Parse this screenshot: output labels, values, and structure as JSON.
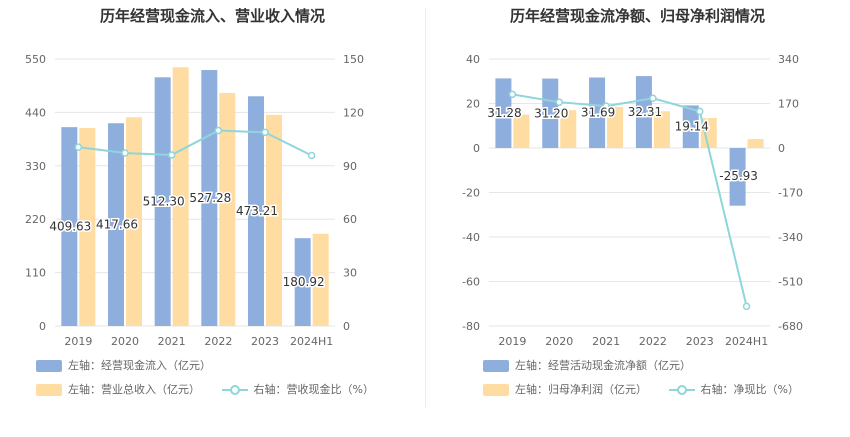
{
  "chart_data": [
    {
      "type": "bar",
      "title": "历年经营现金流入、营业收入情况",
      "categories": [
        "2019",
        "2020",
        "2021",
        "2022",
        "2023",
        "2024H1"
      ],
      "left_axis": {
        "ylim": [
          0,
          550
        ],
        "ticks": [
          "0",
          "110",
          "220",
          "330",
          "440",
          "550"
        ]
      },
      "right_axis": {
        "ylim": [
          0,
          150
        ],
        "ticks": [
          "0",
          "30",
          "60",
          "90",
          "120",
          "150"
        ]
      },
      "series": [
        {
          "name": "左轴：经营现金流入（亿元）",
          "axis": "left",
          "kind": "bar",
          "color": "#8eaedd",
          "values": [
            409.63,
            417.66,
            512.3,
            527.28,
            473.21,
            180.92
          ],
          "labels": [
            "409.63",
            "417.66",
            "512.30",
            "527.28",
            "473.21",
            "180.92"
          ]
        },
        {
          "name": "左轴：营业总收入（亿元）",
          "axis": "left",
          "kind": "bar",
          "color": "#ffdca1",
          "values": [
            408,
            430,
            533,
            480,
            435,
            190
          ]
        },
        {
          "name": "右轴：营收现金比（%）",
          "axis": "right",
          "kind": "line",
          "color": "#8ed6da",
          "values": [
            100.5,
            97.2,
            96.1,
            109.8,
            108.8,
            95.8
          ]
        }
      ],
      "grid": true,
      "legend_position": "bottom"
    },
    {
      "type": "bar",
      "title": "历年经营现金流净额、归母净利润情况",
      "categories": [
        "2019",
        "2020",
        "2021",
        "2022",
        "2023",
        "2024H1"
      ],
      "left_axis": {
        "ylim": [
          -80,
          40
        ],
        "ticks": [
          "-80",
          "-60",
          "-40",
          "-20",
          "0",
          "20",
          "40"
        ]
      },
      "right_axis": {
        "ylim": [
          -680,
          340
        ],
        "ticks": [
          "-680",
          "-510",
          "-340",
          "-170",
          "0",
          "170",
          "340"
        ]
      },
      "series": [
        {
          "name": "左轴：经营活动现金流净额（亿元）",
          "axis": "left",
          "kind": "bar",
          "color": "#8eaedd",
          "values": [
            31.28,
            31.2,
            31.69,
            32.31,
            19.14,
            -25.93
          ],
          "labels": [
            "31.28",
            "31.20",
            "31.69",
            "32.31",
            "19.14",
            "-25.93"
          ]
        },
        {
          "name": "左轴：归母净利润（亿元）",
          "axis": "left",
          "kind": "bar",
          "color": "#ffdca1",
          "values": [
            15.0,
            17.0,
            18.5,
            16.5,
            13.5,
            4.0
          ]
        },
        {
          "name": "右轴：净现比（%）",
          "axis": "right",
          "kind": "line",
          "color": "#8ed6da",
          "values": [
            205,
            175,
            160,
            190,
            140,
            -605
          ]
        }
      ],
      "grid": true,
      "legend_position": "bottom"
    }
  ]
}
